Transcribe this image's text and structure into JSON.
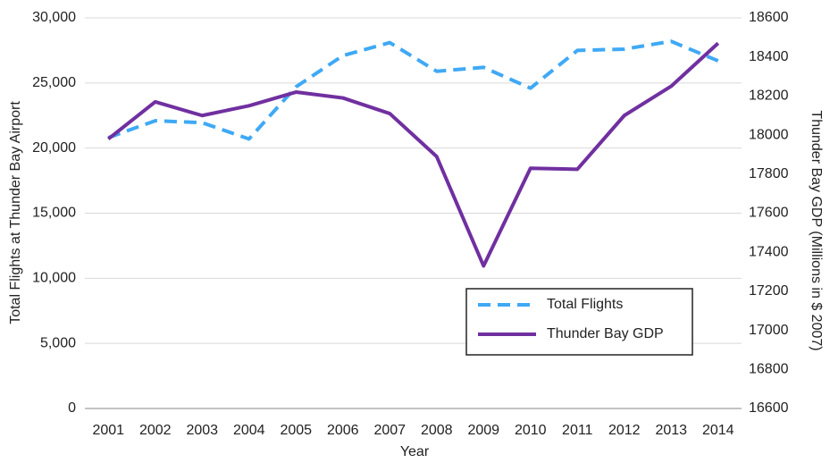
{
  "chart_data": {
    "type": "line",
    "x_label": "Year",
    "y_label": "Total Flights at Thunder Bay Airport",
    "y2_label": "Thunder Bay GDP  (Millions in $ 2007)",
    "categories": [
      "2001",
      "2002",
      "2003",
      "2004",
      "2005",
      "2006",
      "2007",
      "2008",
      "2009",
      "2010",
      "2011",
      "2012",
      "2013",
      "2014"
    ],
    "series": [
      {
        "name": "Total Flights",
        "color": "#3fa9f5",
        "dashed": true,
        "values": [
          20800,
          22100,
          21950,
          20700,
          24700,
          27100,
          28100,
          25900,
          26200,
          24600,
          27500,
          27600,
          28200,
          26700
        ]
      },
      {
        "name": "Thunder Bay GDP",
        "color": "#7030a0",
        "axis": "y2",
        "values": [
          17980,
          18170,
          18100,
          18150,
          18220,
          18190,
          18110,
          17890,
          17330,
          17830,
          17825,
          18100,
          18250,
          18470
        ]
      }
    ],
    "ylim": [
      0,
      30000
    ],
    "yticks": [
      0,
      {
        "value": 5000,
        "label": "5,000"
      },
      {
        "value": 10000,
        "label": "10,000"
      },
      {
        "value": 15000,
        "label": "15,000"
      },
      {
        "value": 20000,
        "label": "20,000"
      },
      {
        "value": 25000,
        "label": "25,000"
      },
      {
        "value": 30000,
        "label": "30,000"
      }
    ],
    "y2lim": [
      16600,
      18600
    ],
    "y2ticks": [
      16600,
      16800,
      17000,
      17200,
      17400,
      17600,
      17800,
      18000,
      18200,
      18400,
      18600
    ],
    "grid": true,
    "legend": "lower right"
  }
}
